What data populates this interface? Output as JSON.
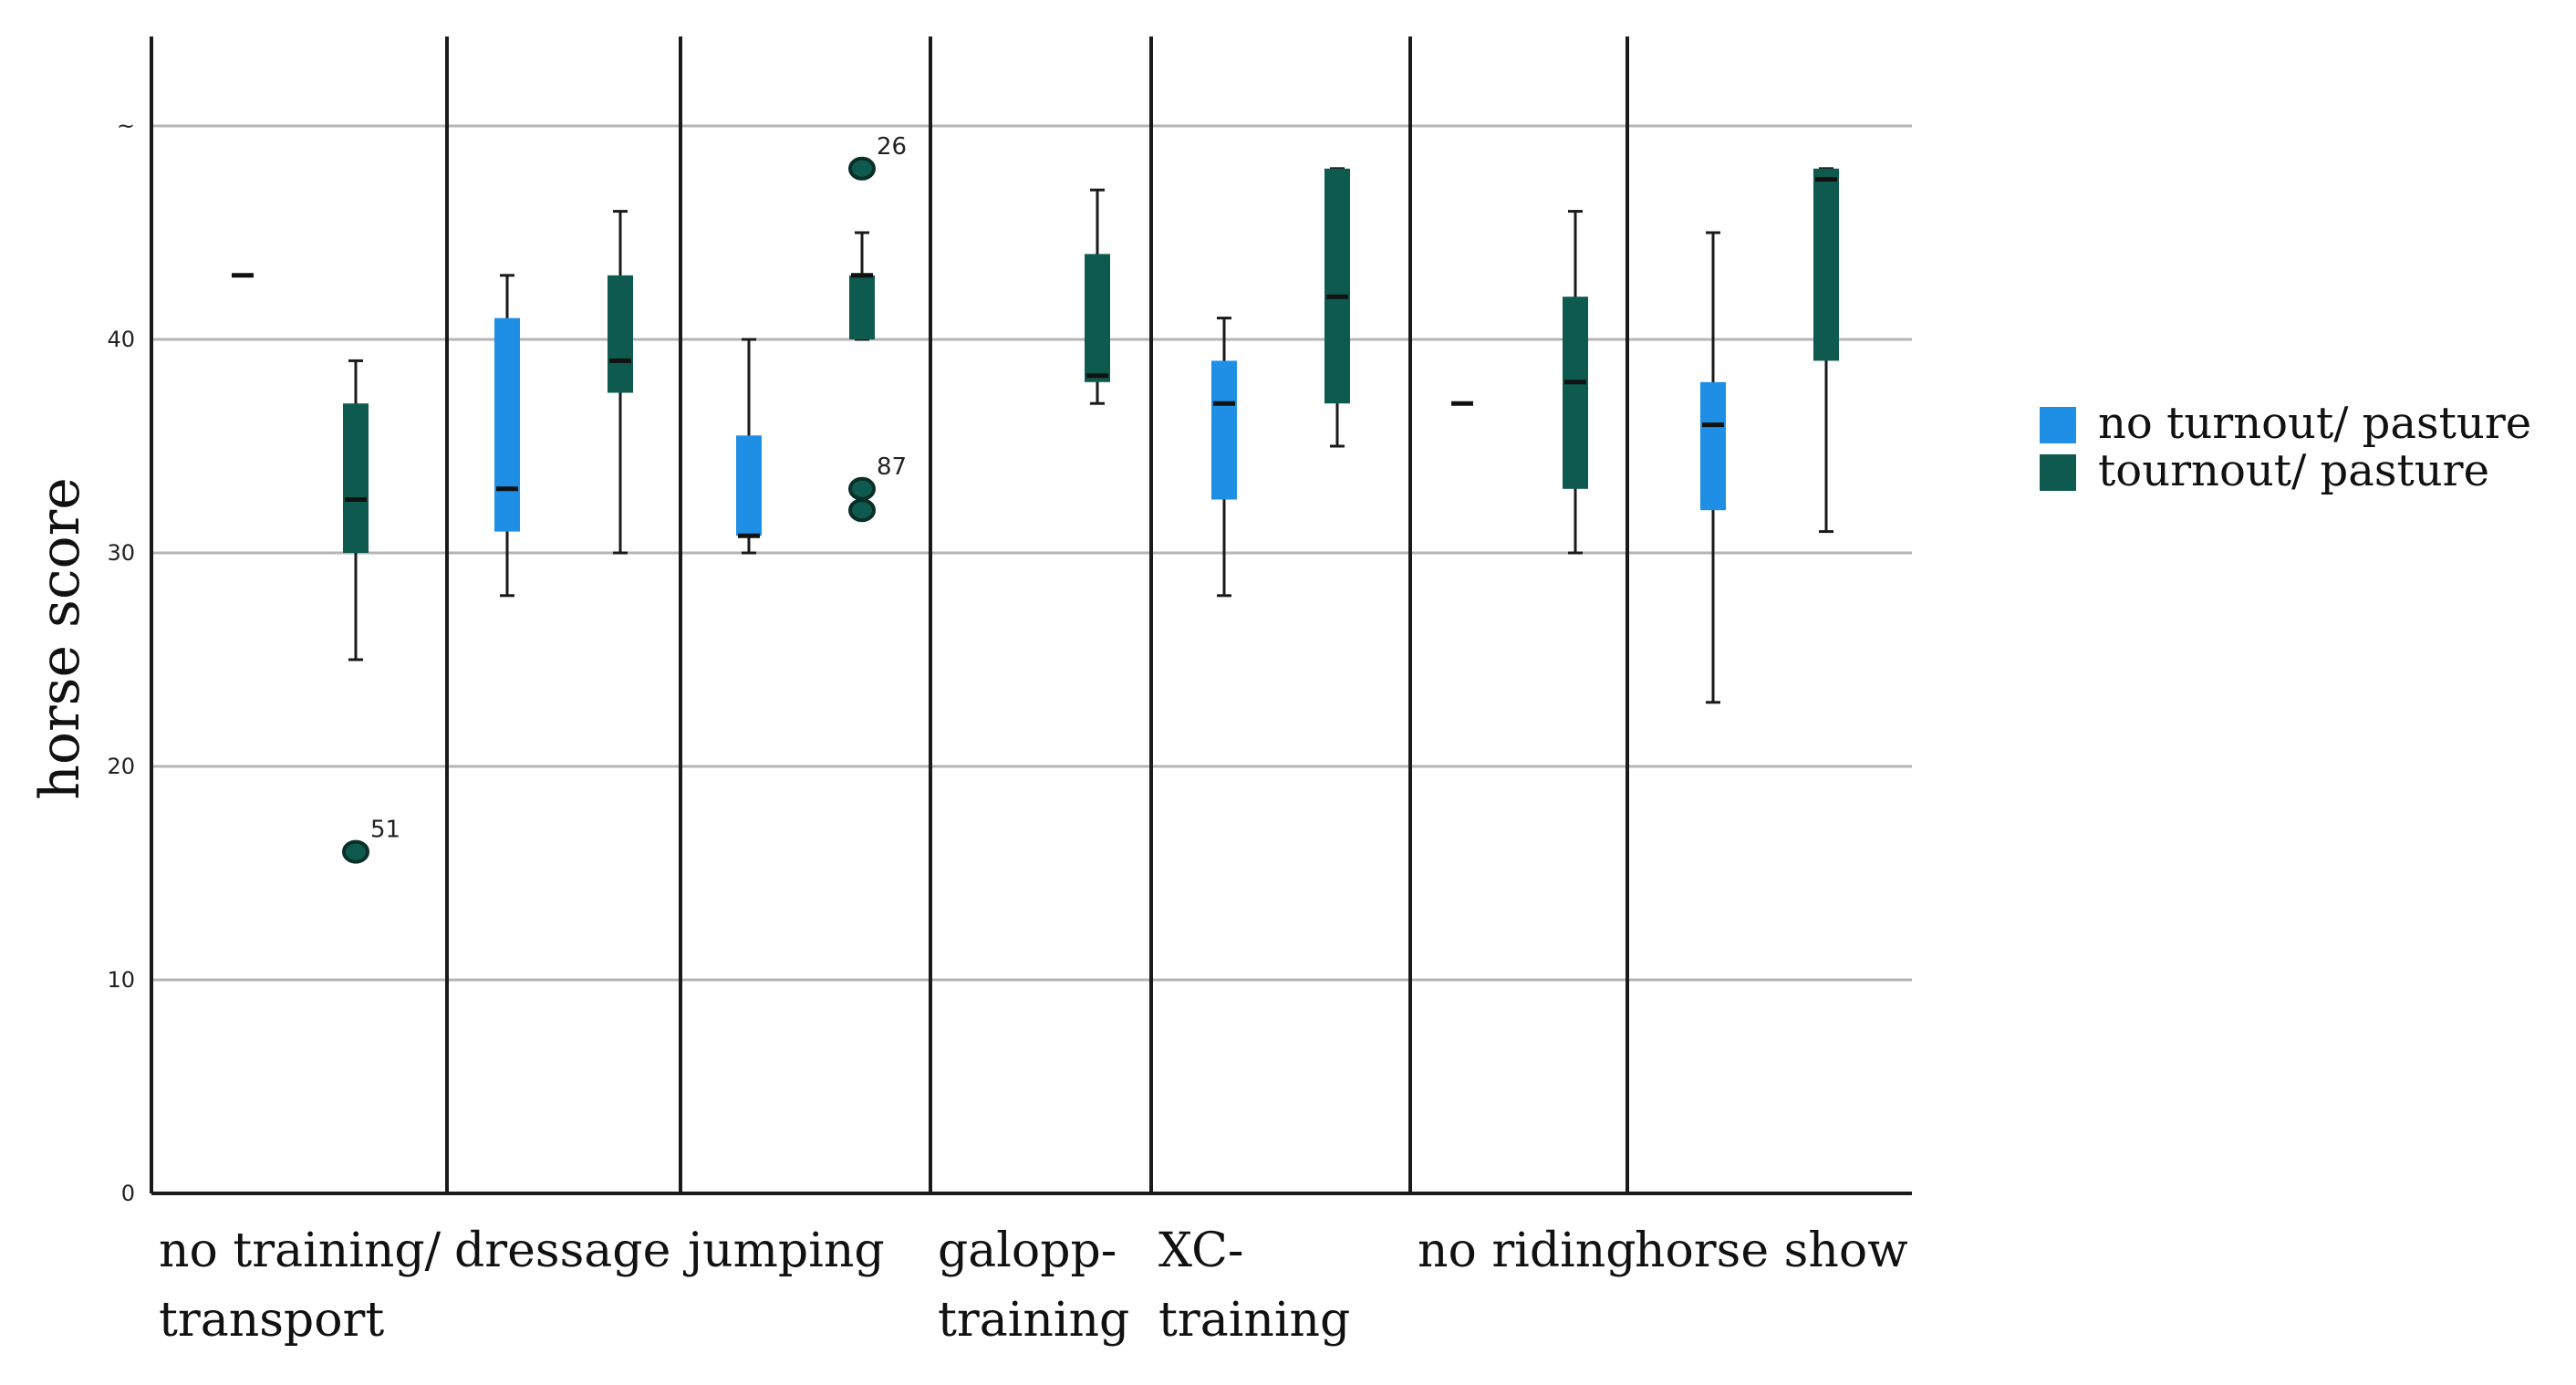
{
  "chart_data": {
    "type": "box",
    "ylabel": "horse score",
    "xlabel": "",
    "ylim": [
      0,
      50
    ],
    "yticks": [
      0,
      10,
      20,
      30,
      40
    ],
    "top_tick_label": "~",
    "grid": true,
    "legend_position": "right",
    "categories": [
      {
        "lines": [
          "no training/",
          "transport"
        ]
      },
      {
        "lines": [
          "dressage"
        ]
      },
      {
        "lines": [
          "jumping"
        ]
      },
      {
        "lines": [
          "galopp-",
          "training"
        ]
      },
      {
        "lines": [
          "XC-",
          "training"
        ]
      },
      {
        "lines": [
          "no riding"
        ]
      },
      {
        "lines": [
          "horse show"
        ]
      }
    ],
    "series": [
      {
        "name": "no turnout/ pasture",
        "color": "#1f8fe5"
      },
      {
        "name": "tournout/ pasture",
        "color": "#0f5a4e"
      }
    ],
    "boxes": [
      {
        "category": 0,
        "series": 0,
        "min": 43,
        "q1": 43,
        "median": 43,
        "q3": 43,
        "max": 43
      },
      {
        "category": 0,
        "series": 1,
        "min": 25,
        "q1": 30,
        "median": 32.5,
        "q3": 37,
        "max": 39
      },
      {
        "category": 1,
        "series": 0,
        "min": 28,
        "q1": 31,
        "median": 33,
        "q3": 41,
        "max": 43
      },
      {
        "category": 1,
        "series": 1,
        "min": 30,
        "q1": 37.5,
        "median": 39,
        "q3": 43,
        "max": 46
      },
      {
        "category": 2,
        "series": 0,
        "min": 30,
        "q1": 30.8,
        "median": 30.8,
        "q3": 35.5,
        "max": 40
      },
      {
        "category": 2,
        "series": 1,
        "min": 40,
        "q1": 40,
        "median": 43,
        "q3": 43,
        "max": 45
      },
      {
        "category": 3,
        "series": 1,
        "min": 37,
        "q1": 38,
        "median": 38.3,
        "q3": 44,
        "max": 47
      },
      {
        "category": 4,
        "series": 0,
        "min": 28,
        "q1": 32.5,
        "median": 37,
        "q3": 39,
        "max": 41
      },
      {
        "category": 4,
        "series": 1,
        "min": 35,
        "q1": 37,
        "median": 42,
        "q3": 48,
        "max": 48
      },
      {
        "category": 5,
        "series": 0,
        "min": 37,
        "q1": 37,
        "median": 37,
        "q3": 37,
        "max": 37
      },
      {
        "category": 5,
        "series": 1,
        "min": 30,
        "q1": 33,
        "median": 38,
        "q3": 42,
        "max": 46
      },
      {
        "category": 6,
        "series": 0,
        "min": 23,
        "q1": 32,
        "median": 36,
        "q3": 38,
        "max": 45
      },
      {
        "category": 6,
        "series": 1,
        "min": 31,
        "q1": 39,
        "median": 47.5,
        "q3": 48,
        "max": 48
      }
    ],
    "outliers": [
      {
        "category": 0,
        "series": 1,
        "value": 16,
        "label": "51"
      },
      {
        "category": 2,
        "series": 1,
        "value": 48,
        "label": "26"
      },
      {
        "category": 2,
        "series": 1,
        "value": 33,
        "label": "87"
      },
      {
        "category": 2,
        "series": 1,
        "value": 32,
        "label": ""
      }
    ]
  }
}
